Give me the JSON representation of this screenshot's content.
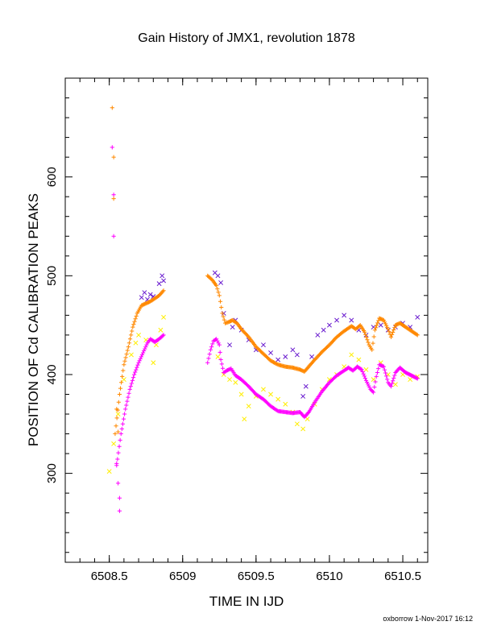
{
  "chart_data": {
    "type": "scatter",
    "title": "Gain History of JMX1, revolution 1878",
    "xlabel": "TIME IN IJD",
    "ylabel": "POSITION OF Cd CALIBRATION PEAKS",
    "xlim": [
      6508.2,
      6510.67
    ],
    "ylim": [
      210,
      700
    ],
    "x_ticks": [
      {
        "value": 6508.5,
        "label": "6508.5"
      },
      {
        "value": 6509.0,
        "label": "6509"
      },
      {
        "value": 6509.5,
        "label": "6509.5"
      },
      {
        "value": 6510.0,
        "label": "6510"
      },
      {
        "value": 6510.5,
        "label": "6510.5"
      }
    ],
    "y_ticks": [
      {
        "value": 300,
        "label": "300"
      },
      {
        "value": 400,
        "label": "400"
      },
      {
        "value": 500,
        "label": "500"
      },
      {
        "value": 600,
        "label": "600"
      }
    ],
    "grid": false,
    "legend": "none",
    "series": [
      {
        "marker": "x",
        "color": "#6a1ccf",
        "points": [
          [
            6508.72,
            478
          ],
          [
            6508.74,
            483
          ],
          [
            6508.76,
            476
          ],
          [
            6508.78,
            481
          ],
          [
            6508.8,
            479
          ],
          [
            6508.84,
            492
          ],
          [
            6508.86,
            500
          ],
          [
            6508.87,
            495
          ],
          [
            6509.22,
            503
          ],
          [
            6509.24,
            500
          ],
          [
            6509.26,
            493
          ],
          [
            6509.28,
            462
          ],
          [
            6509.32,
            430
          ],
          [
            6509.34,
            448
          ],
          [
            6509.36,
            455
          ],
          [
            6509.4,
            445
          ],
          [
            6509.45,
            435
          ],
          [
            6509.5,
            425
          ],
          [
            6509.55,
            430
          ],
          [
            6509.6,
            422
          ],
          [
            6509.65,
            415
          ],
          [
            6509.7,
            418
          ],
          [
            6509.75,
            425
          ],
          [
            6509.78,
            420
          ],
          [
            6509.82,
            378
          ],
          [
            6509.84,
            388
          ],
          [
            6509.88,
            418
          ],
          [
            6509.92,
            440
          ],
          [
            6509.96,
            445
          ],
          [
            6510.0,
            450
          ],
          [
            6510.05,
            455
          ],
          [
            6510.1,
            460
          ],
          [
            6510.15,
            455
          ],
          [
            6510.2,
            445
          ],
          [
            6510.25,
            440
          ],
          [
            6510.3,
            448
          ],
          [
            6510.35,
            450
          ],
          [
            6510.4,
            445
          ],
          [
            6510.45,
            448
          ],
          [
            6510.5,
            452
          ],
          [
            6510.55,
            448
          ],
          [
            6510.6,
            458
          ]
        ]
      },
      {
        "marker": "x",
        "color": "#ffee00",
        "points": [
          [
            6508.5,
            302
          ],
          [
            6508.53,
            330
          ],
          [
            6508.56,
            360
          ],
          [
            6508.6,
            395
          ],
          [
            6508.65,
            420
          ],
          [
            6508.68,
            432
          ],
          [
            6508.7,
            440
          ],
          [
            6508.75,
            435
          ],
          [
            6508.8,
            412
          ],
          [
            6508.82,
            430
          ],
          [
            6508.85,
            445
          ],
          [
            6508.87,
            458
          ],
          [
            6509.24,
            418
          ],
          [
            6509.28,
            400
          ],
          [
            6509.32,
            395
          ],
          [
            6509.36,
            392
          ],
          [
            6509.4,
            380
          ],
          [
            6509.42,
            355
          ],
          [
            6509.45,
            368
          ],
          [
            6509.5,
            378
          ],
          [
            6509.55,
            385
          ],
          [
            6509.6,
            380
          ],
          [
            6509.65,
            375
          ],
          [
            6509.7,
            370
          ],
          [
            6509.75,
            362
          ],
          [
            6509.78,
            350
          ],
          [
            6509.82,
            345
          ],
          [
            6509.85,
            355
          ],
          [
            6509.9,
            370
          ],
          [
            6509.95,
            385
          ],
          [
            6510.0,
            395
          ],
          [
            6510.05,
            400
          ],
          [
            6510.1,
            408
          ],
          [
            6510.15,
            420
          ],
          [
            6510.2,
            415
          ],
          [
            6510.25,
            405
          ],
          [
            6510.3,
            395
          ],
          [
            6510.35,
            412
          ],
          [
            6510.4,
            400
          ],
          [
            6510.45,
            390
          ],
          [
            6510.5,
            400
          ],
          [
            6510.55,
            395
          ],
          [
            6510.6,
            398
          ]
        ]
      },
      {
        "marker": "+",
        "color": "#ff00ff",
        "points": [
          [
            6508.52,
            630
          ],
          [
            6508.53,
            582
          ],
          [
            6508.53,
            540
          ],
          [
            6508.55,
            310
          ],
          [
            6508.56,
            290
          ],
          [
            6508.57,
            275
          ],
          [
            6508.57,
            262
          ]
        ],
        "curve": [
          [
            6508.55,
            308
          ],
          [
            6508.58,
            340
          ],
          [
            6508.61,
            365
          ],
          [
            6508.64,
            385
          ],
          [
            6508.67,
            400
          ],
          [
            6508.7,
            412
          ],
          [
            6508.73,
            422
          ],
          [
            6508.76,
            432
          ],
          [
            6508.78,
            436
          ],
          [
            6508.81,
            433
          ],
          [
            6508.84,
            436
          ],
          [
            6508.87,
            440
          ],
          [
            6509.17,
            412
          ],
          [
            6509.19,
            425
          ],
          [
            6509.21,
            434
          ],
          [
            6509.23,
            436
          ],
          [
            6509.25,
            430
          ],
          [
            6509.26,
            415
          ],
          [
            6509.28,
            402
          ],
          [
            6509.3,
            404
          ],
          [
            6509.33,
            406
          ],
          [
            6509.36,
            399
          ],
          [
            6509.4,
            395
          ],
          [
            6509.45,
            388
          ],
          [
            6509.5,
            380
          ],
          [
            6509.55,
            375
          ],
          [
            6509.6,
            368
          ],
          [
            6509.65,
            363
          ],
          [
            6509.7,
            362
          ],
          [
            6509.75,
            361
          ],
          [
            6509.8,
            362
          ],
          [
            6509.83,
            357
          ],
          [
            6509.86,
            362
          ],
          [
            6509.9,
            372
          ],
          [
            6509.95,
            383
          ],
          [
            6510.0,
            392
          ],
          [
            6510.05,
            399
          ],
          [
            6510.1,
            404
          ],
          [
            6510.13,
            407
          ],
          [
            6510.16,
            404
          ],
          [
            6510.19,
            408
          ],
          [
            6510.22,
            405
          ],
          [
            6510.25,
            394
          ],
          [
            6510.28,
            385
          ],
          [
            6510.3,
            382
          ],
          [
            6510.32,
            398
          ],
          [
            6510.34,
            410
          ],
          [
            6510.37,
            408
          ],
          [
            6510.4,
            392
          ],
          [
            6510.42,
            388
          ],
          [
            6510.45,
            402
          ],
          [
            6510.48,
            407
          ],
          [
            6510.52,
            402
          ],
          [
            6510.56,
            399
          ],
          [
            6510.6,
            396
          ]
        ]
      },
      {
        "marker": "+",
        "color": "#ff8800",
        "points": [
          [
            6508.52,
            670
          ],
          [
            6508.53,
            620
          ],
          [
            6508.53,
            578
          ],
          [
            6508.55,
            365
          ],
          [
            6508.56,
            342
          ]
        ],
        "curve": [
          [
            6508.54,
            340
          ],
          [
            6508.57,
            380
          ],
          [
            6508.6,
            410
          ],
          [
            6508.63,
            428
          ],
          [
            6508.66,
            448
          ],
          [
            6508.69,
            462
          ],
          [
            6508.72,
            470
          ],
          [
            6508.75,
            472
          ],
          [
            6508.78,
            474
          ],
          [
            6508.81,
            477
          ],
          [
            6508.84,
            480
          ],
          [
            6508.87,
            485
          ],
          [
            6509.17,
            500
          ],
          [
            6509.2,
            496
          ],
          [
            6509.23,
            490
          ],
          [
            6509.25,
            480
          ],
          [
            6509.27,
            462
          ],
          [
            6509.29,
            452
          ],
          [
            6509.31,
            453
          ],
          [
            6509.34,
            455
          ],
          [
            6509.37,
            452
          ],
          [
            6509.4,
            446
          ],
          [
            6509.45,
            438
          ],
          [
            6509.5,
            428
          ],
          [
            6509.55,
            421
          ],
          [
            6509.6,
            414
          ],
          [
            6509.65,
            410
          ],
          [
            6509.7,
            408
          ],
          [
            6509.75,
            407
          ],
          [
            6509.8,
            405
          ],
          [
            6509.83,
            403
          ],
          [
            6509.87,
            410
          ],
          [
            6509.9,
            415
          ],
          [
            6509.95,
            423
          ],
          [
            6510.0,
            430
          ],
          [
            6510.05,
            438
          ],
          [
            6510.1,
            444
          ],
          [
            6510.15,
            449
          ],
          [
            6510.18,
            446
          ],
          [
            6510.21,
            450
          ],
          [
            6510.24,
            443
          ],
          [
            6510.27,
            430
          ],
          [
            6510.29,
            425
          ],
          [
            6510.31,
            445
          ],
          [
            6510.34,
            457
          ],
          [
            6510.37,
            455
          ],
          [
            6510.4,
            446
          ],
          [
            6510.42,
            438
          ],
          [
            6510.45,
            450
          ],
          [
            6510.48,
            452
          ],
          [
            6510.52,
            448
          ],
          [
            6510.56,
            444
          ],
          [
            6510.6,
            440
          ]
        ]
      }
    ],
    "footer": "oxborrow  1-Nov-2017 16:12"
  }
}
